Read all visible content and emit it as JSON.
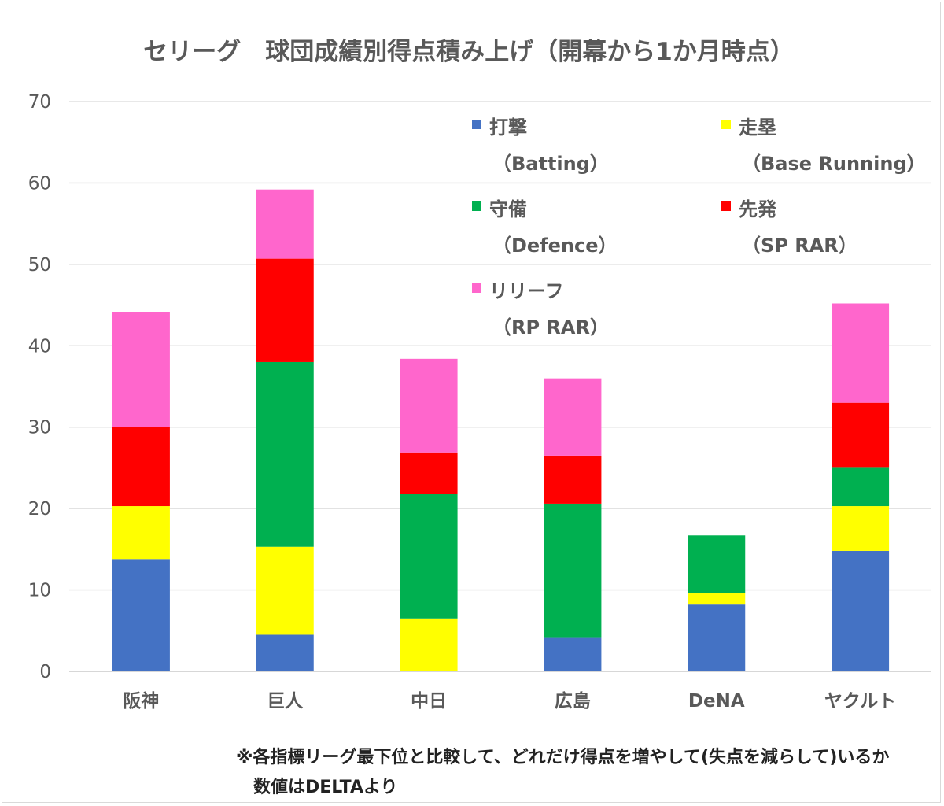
{
  "chart_data": {
    "type": "bar",
    "stacked": true,
    "title": "セリーグ　球団成績別得点積み上げ（開幕から1か月時点）",
    "xlabel": "",
    "ylabel": "",
    "ylim": [
      0,
      70
    ],
    "yticks": [
      0,
      10,
      20,
      30,
      40,
      50,
      60,
      70
    ],
    "grid": true,
    "legend_position": "top-right",
    "categories": [
      "阪神",
      "巨人",
      "中日",
      "広島",
      "DeNA",
      "ヤクルト"
    ],
    "series": [
      {
        "name": "打撃",
        "sub": "（Batting）",
        "color": "#4472c4",
        "values": [
          13.8,
          4.5,
          0,
          4.2,
          8.3,
          14.8
        ]
      },
      {
        "name": "走塁",
        "sub": "（Base Running）",
        "color": "#ffff00",
        "values": [
          6.5,
          10.8,
          6.5,
          0,
          1.3,
          5.5
        ]
      },
      {
        "name": "守備",
        "sub": "（Defence）",
        "color": "#00b050",
        "values": [
          0,
          22.7,
          15.3,
          16.4,
          7.1,
          4.8
        ]
      },
      {
        "name": "先発",
        "sub": "（SP RAR）",
        "color": "#ff0000",
        "values": [
          9.7,
          12.7,
          5.1,
          5.9,
          0,
          7.9
        ]
      },
      {
        "name": "リリーフ",
        "sub": "（RP RAR）",
        "color": "#ff66cc",
        "values": [
          14.1,
          8.5,
          11.5,
          9.5,
          0,
          12.2
        ]
      }
    ]
  },
  "notes": {
    "line1": "※各指標リーグ最下位と比較して、どれだけ得点を増やして(失点を減らして)いるか",
    "line2": "数値はDELTAより"
  }
}
